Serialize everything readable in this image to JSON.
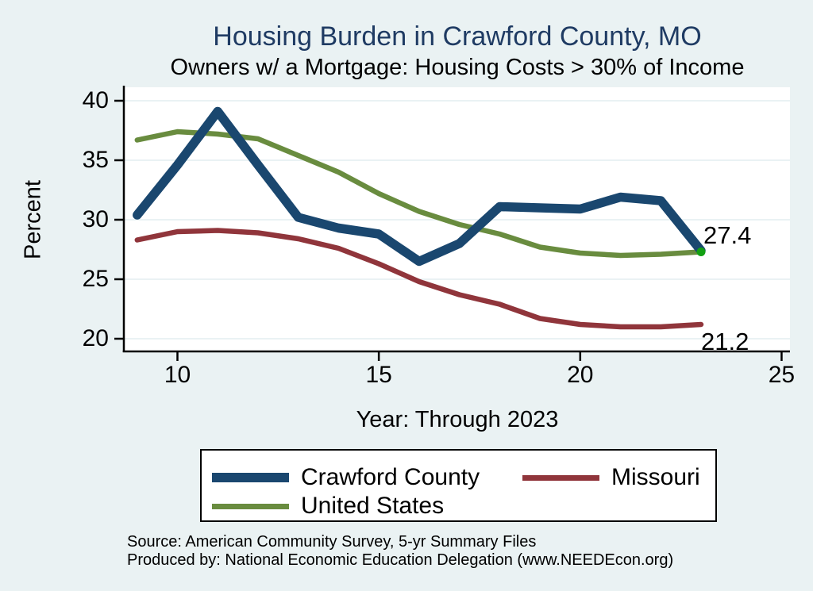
{
  "colors": {
    "page_background": "#eaf2f3",
    "plot_background": "#ffffff",
    "gridline": "#e3eef1",
    "axis": "#000000",
    "title_text": "#1f3b63",
    "endpoint_marker": "#12a012"
  },
  "chart_data": {
    "type": "line",
    "title": "Housing Burden in Crawford County, MO",
    "subtitle": "Owners w/ a Mortgage: Housing Costs > 30% of Income",
    "xlabel": "Year: Through 2023",
    "ylabel": "Percent",
    "x": [
      9,
      10,
      11,
      12,
      13,
      14,
      15,
      16,
      17,
      18,
      19,
      20,
      21,
      22,
      23
    ],
    "series": [
      {
        "name": "Crawford County",
        "color": "#1a476f",
        "line_width": 11.5,
        "values": [
          30.4,
          34.6,
          39.1,
          34.6,
          30.2,
          29.3,
          28.8,
          26.5,
          28.0,
          31.1,
          31.0,
          30.9,
          31.9,
          31.6,
          27.4
        ]
      },
      {
        "name": "Missouri",
        "color": "#90353b",
        "line_width": 6.5,
        "values": [
          28.3,
          29.0,
          29.1,
          28.9,
          28.4,
          27.6,
          26.3,
          24.8,
          23.7,
          22.9,
          21.7,
          21.2,
          21.0,
          21.0,
          21.2
        ]
      },
      {
        "name": "United States",
        "color": "#698c3f",
        "line_width": 6.5,
        "end_marker": true,
        "values": [
          36.7,
          37.4,
          37.2,
          36.8,
          35.4,
          34.0,
          32.2,
          30.7,
          29.6,
          28.8,
          27.7,
          27.2,
          27.0,
          27.1,
          27.3
        ]
      }
    ],
    "x_ticks": [
      10,
      15,
      20,
      25
    ],
    "y_ticks": [
      20,
      25,
      30,
      35,
      40
    ],
    "xlim": [
      8.7,
      25.2
    ],
    "ylim": [
      18.9,
      41.2
    ],
    "grid": "horizontal",
    "legend_position": "bottom",
    "end_labels": [
      {
        "text": "27.4",
        "series": "Crawford County"
      },
      {
        "text": "21.2",
        "series": "Missouri"
      }
    ]
  },
  "legend": {
    "items": [
      {
        "label": "Crawford County",
        "color": "#1a476f",
        "swatch_height": 12
      },
      {
        "label": "Missouri",
        "color": "#90353b",
        "swatch_height": 7
      },
      {
        "label": "United States",
        "color": "#698c3f",
        "swatch_height": 7
      }
    ]
  },
  "source_lines": [
    "Source: American Community Survey, 5-yr Summary Files",
    "Produced by: National Economic Education Delegation (www.NEEDEcon.org)"
  ]
}
